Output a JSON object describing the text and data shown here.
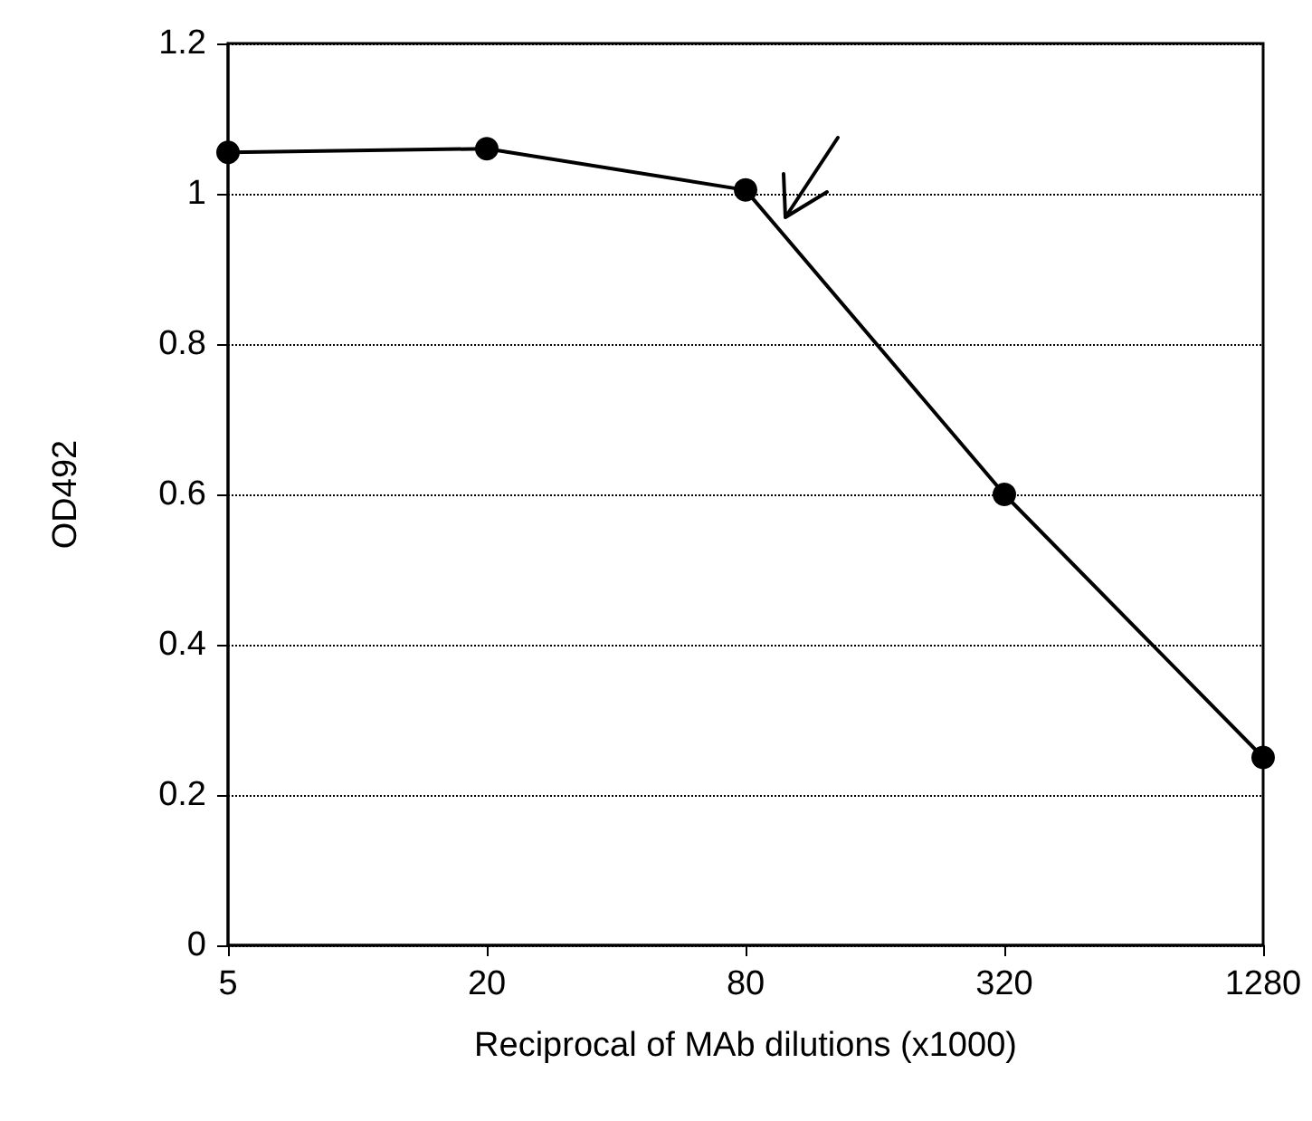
{
  "chart_data": {
    "type": "line",
    "xlabel": "Reciprocal of MAb dilutions (x1000)",
    "ylabel": "OD492",
    "categories": [
      "5",
      "20",
      "80",
      "320",
      "1280"
    ],
    "series": [
      {
        "color": "#000000",
        "values": [
          1.055,
          1.06,
          1.005,
          0.6,
          0.25
        ]
      }
    ],
    "ylim": [
      0,
      1.2
    ],
    "yticks": [
      0,
      0.2,
      0.4,
      0.6,
      0.8,
      1,
      1.2
    ],
    "grid": "y",
    "marker": "circle",
    "line_style": "solid"
  }
}
